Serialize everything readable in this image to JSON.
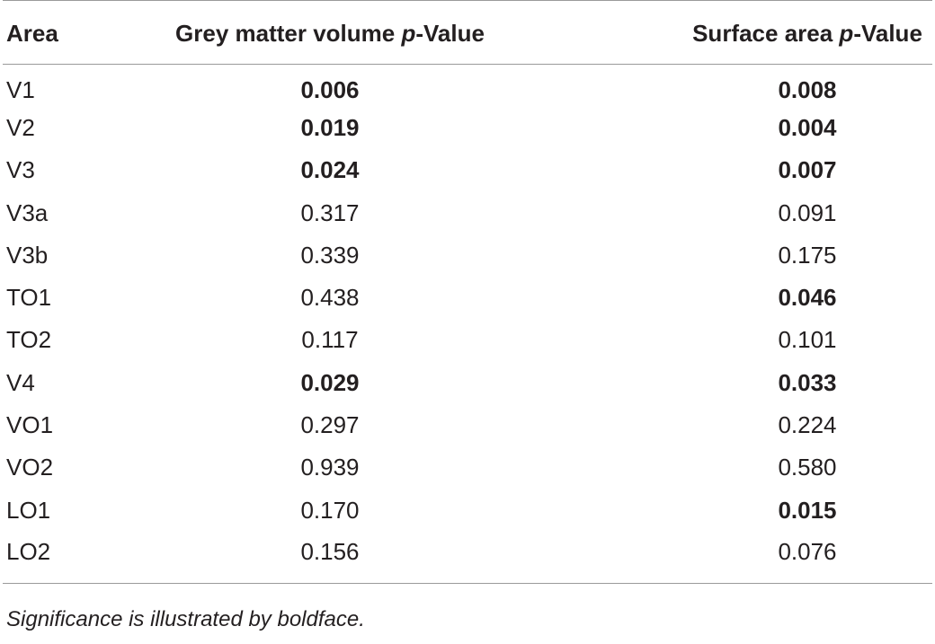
{
  "table": {
    "headers": {
      "area": "Area",
      "grey_matter_prefix": "Grey matter volume ",
      "grey_matter_italic": "p",
      "grey_matter_suffix": "-Value",
      "surface_prefix": "Surface area ",
      "surface_italic": "p",
      "surface_suffix": "-Value"
    },
    "rows": [
      {
        "area": "V1",
        "grey_matter": "0.006",
        "grey_matter_bold": true,
        "surface": "0.008",
        "surface_bold": true
      },
      {
        "area": "V2",
        "grey_matter": "0.019",
        "grey_matter_bold": true,
        "surface": "0.004",
        "surface_bold": true
      },
      {
        "area": "V3",
        "grey_matter": "0.024",
        "grey_matter_bold": true,
        "surface": "0.007",
        "surface_bold": true
      },
      {
        "area": "V3a",
        "grey_matter": "0.317",
        "grey_matter_bold": false,
        "surface": "0.091",
        "surface_bold": false
      },
      {
        "area": "V3b",
        "grey_matter": "0.339",
        "grey_matter_bold": false,
        "surface": "0.175",
        "surface_bold": false
      },
      {
        "area": "TO1",
        "grey_matter": "0.438",
        "grey_matter_bold": false,
        "surface": "0.046",
        "surface_bold": true
      },
      {
        "area": "TO2",
        "grey_matter": "0.117",
        "grey_matter_bold": false,
        "surface": "0.101",
        "surface_bold": false
      },
      {
        "area": "V4",
        "grey_matter": "0.029",
        "grey_matter_bold": true,
        "surface": "0.033",
        "surface_bold": true
      },
      {
        "area": "VO1",
        "grey_matter": "0.297",
        "grey_matter_bold": false,
        "surface": "0.224",
        "surface_bold": false
      },
      {
        "area": "VO2",
        "grey_matter": "0.939",
        "grey_matter_bold": false,
        "surface": "0.580",
        "surface_bold": false
      },
      {
        "area": "LO1",
        "grey_matter": "0.170",
        "grey_matter_bold": false,
        "surface": "0.015",
        "surface_bold": true
      },
      {
        "area": "LO2",
        "grey_matter": "0.156",
        "grey_matter_bold": false,
        "surface": "0.076",
        "surface_bold": false
      }
    ]
  },
  "footnote": "Significance is illustrated by boldface."
}
